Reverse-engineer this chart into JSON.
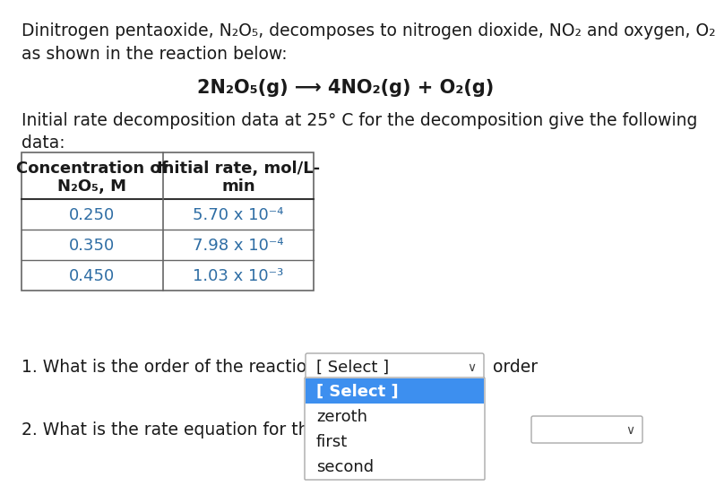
{
  "bg_color": "#ffffff",
  "text_color": "#1a1a1a",
  "blue_text_color": "#2E6DA4",
  "para1_line1": "Dinitrogen pentaoxide, N₂O₅, decomposes to nitrogen dioxide, NO₂ and oxygen, O₂",
  "para1_line2": "as shown in the reaction below:",
  "reaction": "2N₂O₅(g) ⟶ 4NO₂(g) + O₂(g)",
  "para2_line1": "Initial rate decomposition data at 25° C for the decomposition give the following",
  "para2_line2": "data:",
  "col1_header1": "Concentration of",
  "col1_header2": "N₂O₅, M",
  "col2_header1": "Initial rate, mol/L-",
  "col2_header2": "min",
  "table_col1": [
    "0.250",
    "0.350",
    "0.450"
  ],
  "table_col2": [
    "5.70 x 10⁻⁴",
    "7.98 x 10⁻⁴",
    "1.03 x 10⁻³"
  ],
  "q1_text": "1. What is the order of the reaction?",
  "q1_dropdown_text": "[ Select ]",
  "q1_suffix": "order",
  "dropdown_items": [
    "[ Select ]",
    "zeroth",
    "first",
    "second"
  ],
  "dropdown_selected": 0,
  "q2_text": "2. What is the rate equation for the d",
  "dropdown_selected_color": "#3d8fef",
  "dropdown_border_color": "#aaaaaa",
  "font_size_body": 13.5,
  "font_size_reaction": 15,
  "font_size_table_header": 13,
  "font_size_table_data": 13,
  "font_size_dropdown": 13
}
